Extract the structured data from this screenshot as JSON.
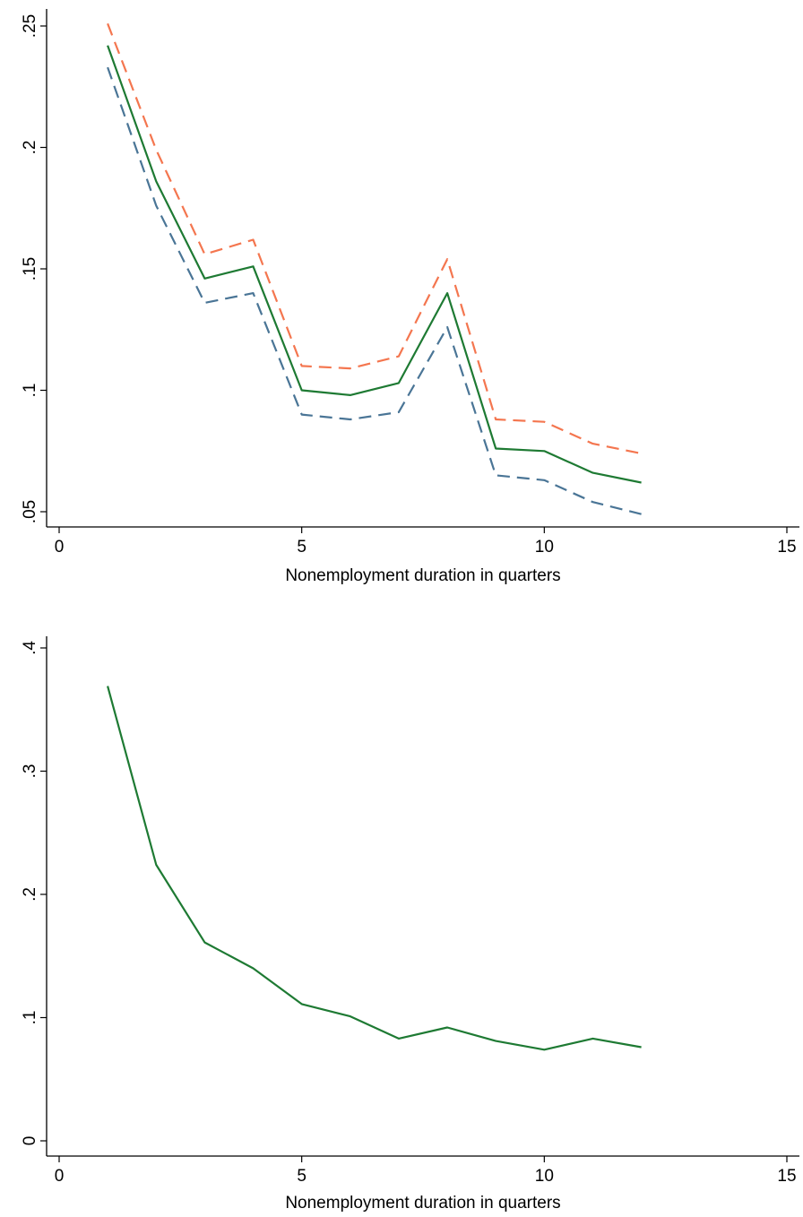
{
  "chart_data": [
    {
      "type": "line",
      "xlabel": "Nonemployment duration in quarters",
      "ylabel": "",
      "xlim": [
        0,
        15
      ],
      "ylim": [
        0.05,
        0.25
      ],
      "xticks": [
        0,
        5,
        10,
        15
      ],
      "xtick_labels": [
        "0",
        "5",
        "10",
        "15"
      ],
      "yticks": [
        0.05,
        0.1,
        0.15,
        0.2,
        0.25
      ],
      "ytick_labels": [
        ".05",
        ".1",
        ".15",
        ".2",
        ".25"
      ],
      "grid": false,
      "x": [
        1,
        2,
        3,
        4,
        5,
        6,
        7,
        8,
        9,
        10,
        11,
        12
      ],
      "series": [
        {
          "values": [
            0.251,
            0.199,
            0.156,
            0.162,
            0.11,
            0.109,
            0.114,
            0.154,
            0.088,
            0.087,
            0.078,
            0.074
          ],
          "color": "#f4764f",
          "dash": true
        },
        {
          "values": [
            0.242,
            0.186,
            0.146,
            0.151,
            0.1,
            0.098,
            0.103,
            0.14,
            0.076,
            0.075,
            0.066,
            0.062
          ],
          "color": "#1e7a33",
          "dash": false
        },
        {
          "values": [
            0.233,
            0.176,
            0.136,
            0.14,
            0.09,
            0.088,
            0.091,
            0.126,
            0.065,
            0.063,
            0.054,
            0.049
          ],
          "color": "#4a7596",
          "dash": true
        }
      ]
    },
    {
      "type": "line",
      "xlabel": "Nonemployment duration in quarters",
      "ylabel": "",
      "xlim": [
        0,
        15
      ],
      "ylim": [
        0,
        0.4
      ],
      "xticks": [
        0,
        5,
        10,
        15
      ],
      "xtick_labels": [
        "0",
        "5",
        "10",
        "15"
      ],
      "yticks": [
        0,
        0.1,
        0.2,
        0.3,
        0.4
      ],
      "ytick_labels": [
        "0",
        ".1",
        ".2",
        ".3",
        ".4"
      ],
      "grid": false,
      "x": [
        1,
        2,
        3,
        4,
        5,
        6,
        7,
        8,
        9,
        10,
        11,
        12
      ],
      "series": [
        {
          "values": [
            0.369,
            0.224,
            0.161,
            0.14,
            0.111,
            0.101,
            0.083,
            0.092,
            0.081,
            0.074,
            0.083,
            0.076
          ],
          "color": "#1e7a33",
          "dash": false
        }
      ]
    }
  ]
}
